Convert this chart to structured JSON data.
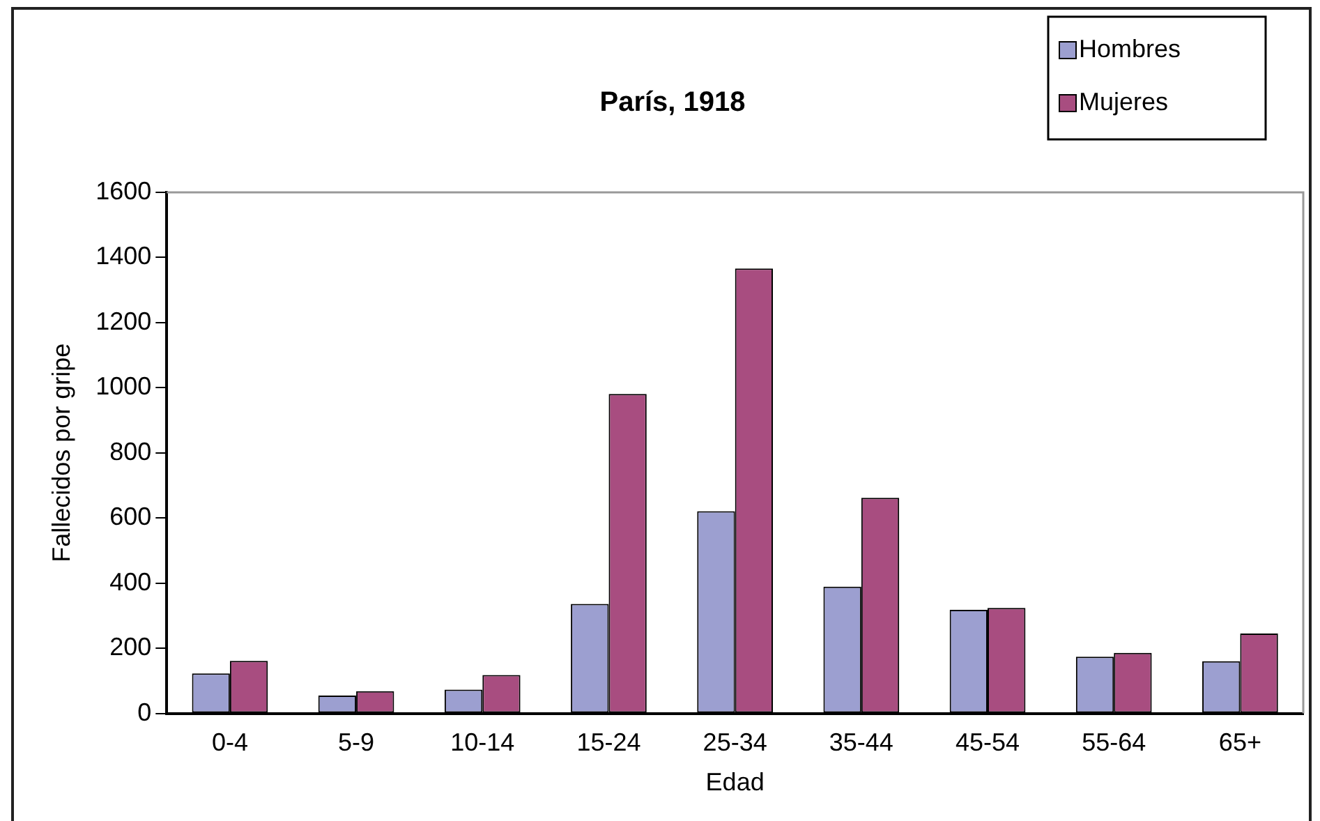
{
  "chart_data": {
    "type": "bar",
    "title": "París, 1918",
    "xlabel": "Edad",
    "ylabel": "Fallecidos por gripe",
    "categories": [
      "0-4",
      "5-9",
      "10-14",
      "15-24",
      "25-34",
      "35-44",
      "45-54",
      "55-64",
      "65+"
    ],
    "series": [
      {
        "name": "Hombres",
        "color": "#9c9fd0",
        "values": [
          123,
          55,
          73,
          336,
          621,
          389,
          318,
          174,
          160
        ]
      },
      {
        "name": "Mujeres",
        "color": "#a84d80",
        "values": [
          161,
          68,
          118,
          981,
          1366,
          662,
          324,
          186,
          245
        ]
      }
    ],
    "ylim": [
      0,
      1600
    ],
    "yticks": [
      0,
      200,
      400,
      600,
      800,
      1000,
      1200,
      1400,
      1600
    ],
    "grid": false,
    "legend": "top right"
  }
}
